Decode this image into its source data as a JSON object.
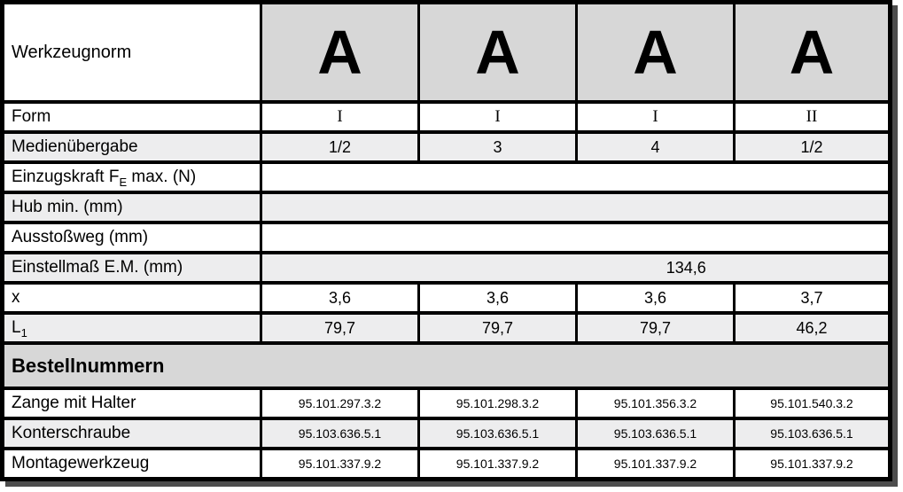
{
  "header": {
    "label": "Werkzeugnorm",
    "tool_norm": [
      "A",
      "A",
      "A",
      "A"
    ]
  },
  "rows": {
    "form": {
      "label": "Form",
      "values": [
        "I",
        "I",
        "I",
        "II"
      ]
    },
    "medienuebergabe": {
      "label": "Medienübergabe",
      "values": [
        "1/2",
        "3",
        "4",
        "1/2"
      ]
    },
    "einzugskraft": {
      "label_pre": "Einzugskraft F",
      "label_sub": "E",
      "label_post": " max. (N)",
      "value": ""
    },
    "hub": {
      "label": "Hub min. (mm)",
      "value": ""
    },
    "ausstossweg": {
      "label": "Ausstoßweg (mm)",
      "value": ""
    },
    "einstellmass": {
      "label": "Einstellmaß E.M. (mm)",
      "value": "134,6"
    },
    "x": {
      "label": "x",
      "values": [
        "3,6",
        "3,6",
        "3,6",
        "3,7"
      ]
    },
    "l1": {
      "label_pre": "L",
      "label_sub": "1",
      "label_post": "",
      "values": [
        "79,7",
        "79,7",
        "79,7",
        "46,2"
      ]
    }
  },
  "section": {
    "title": "Bestellnummern"
  },
  "order_rows": {
    "zange": {
      "label": "Zange mit Halter",
      "values": [
        "95.101.297.3.2",
        "95.101.298.3.2",
        "95.101.356.3.2",
        "95.101.540.3.2"
      ]
    },
    "konterschraube": {
      "label": "Konterschraube",
      "values": [
        "95.103.636.5.1",
        "95.103.636.5.1",
        "95.103.636.5.1",
        "95.103.636.5.1"
      ]
    },
    "montagewerkzeug": {
      "label": "Montagewerkzeug",
      "values": [
        "95.101.337.9.2",
        "95.101.337.9.2",
        "95.101.337.9.2",
        "95.101.337.9.2"
      ]
    }
  },
  "colors": {
    "header_bg": "#d7d7d7",
    "section_bg": "#d7d7d7",
    "alt_row_bg": "#ededee",
    "border": "#000000",
    "shadow": "#4d4d4d"
  }
}
